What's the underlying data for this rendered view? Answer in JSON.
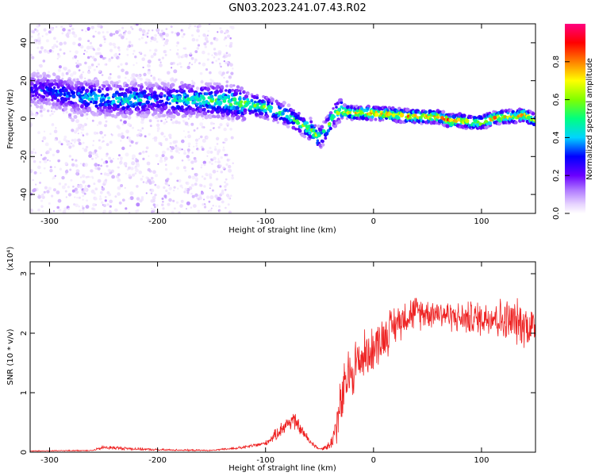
{
  "title": "GN03.2023.241.07.43.R02",
  "chart_data": [
    {
      "type": "heatmap",
      "xlabel": "Height of straight line (km)",
      "ylabel": "Frequency (Hz)",
      "xlim": [
        -318,
        150
      ],
      "ylim": [
        -50,
        50
      ],
      "xticks": [
        -300,
        -200,
        -100,
        0,
        100
      ],
      "yticks": [
        -40,
        -20,
        0,
        20,
        40
      ],
      "colorbar": {
        "label": "Normalized spectral amplitude",
        "range": [
          0,
          1
        ],
        "ticks": [
          0.0,
          0.2,
          0.4,
          0.6,
          0.8
        ],
        "colors": [
          "#ffffff",
          "#e6d2ff",
          "#b27dff",
          "#6a00ff",
          "#0000ff",
          "#00d4ff",
          "#00ff80",
          "#80ff00",
          "#ffff00",
          "#ff8000",
          "#ff0000",
          "#ff0080"
        ]
      },
      "ridge": {
        "x": [
          -318,
          -300,
          -280,
          -260,
          -240,
          -220,
          -200,
          -180,
          -160,
          -140,
          -120,
          -100,
          -90,
          -80,
          -70,
          -60,
          -55,
          -50,
          -45,
          -40,
          -35,
          -30,
          -20,
          -10,
          0,
          20,
          40,
          60,
          70,
          80,
          90,
          100,
          110,
          120,
          130,
          140,
          150
        ],
        "freq": [
          15,
          15,
          12,
          11,
          10,
          10,
          10,
          10,
          10,
          9,
          8,
          6,
          4,
          2,
          -2,
          -5,
          -8,
          -10,
          -7,
          -2,
          3,
          4,
          3,
          3,
          3,
          2,
          1,
          1,
          -1,
          -1,
          -2,
          -2,
          0,
          1,
          1,
          2,
          -1
        ],
        "amplitude": [
          0.4,
          0.45,
          0.5,
          0.55,
          0.55,
          0.6,
          0.45,
          0.6,
          0.6,
          0.65,
          0.7,
          0.7,
          0.65,
          0.6,
          0.65,
          0.7,
          0.75,
          0.7,
          0.6,
          0.7,
          0.75,
          0.85,
          0.9,
          0.9,
          0.95,
          0.95,
          0.95,
          0.9,
          0.95,
          0.95,
          0.85,
          0.85,
          0.9,
          0.9,
          0.85,
          0.9,
          0.8
        ]
      }
    },
    {
      "type": "line",
      "series_color": "#ee2222",
      "xlabel": "Height of straight line (km)",
      "ylabel": "SNR (10 * v/v)",
      "y_multiplier_label": "(x10⁴)",
      "xlim": [
        -318,
        150
      ],
      "ylim": [
        0,
        3.2
      ],
      "xticks": [
        -300,
        -200,
        -100,
        0,
        100
      ],
      "yticks": [
        0,
        1,
        2,
        3
      ],
      "envelope": {
        "x": [
          -318,
          -260,
          -250,
          -200,
          -150,
          -120,
          -100,
          -90,
          -85,
          -75,
          -70,
          -60,
          -50,
          -40,
          -35,
          -30,
          -25,
          -20,
          -10,
          0,
          10,
          20,
          30,
          40,
          50,
          60,
          70,
          80,
          90,
          100,
          110,
          120,
          130,
          140,
          150
        ],
        "y": [
          0.02,
          0.03,
          0.08,
          0.04,
          0.03,
          0.08,
          0.15,
          0.3,
          0.4,
          0.55,
          0.45,
          0.2,
          0.05,
          0.12,
          0.4,
          0.8,
          1.2,
          1.4,
          1.6,
          1.75,
          1.95,
          2.15,
          2.3,
          2.35,
          2.35,
          2.35,
          2.3,
          2.25,
          2.25,
          2.25,
          2.3,
          2.2,
          2.2,
          2.15,
          2.1
        ],
        "spread": [
          0.01,
          0.01,
          0.04,
          0.02,
          0.01,
          0.03,
          0.05,
          0.12,
          0.15,
          0.2,
          0.15,
          0.08,
          0.02,
          0.1,
          0.35,
          0.6,
          0.55,
          0.6,
          0.5,
          0.45,
          0.45,
          0.4,
          0.35,
          0.35,
          0.3,
          0.3,
          0.3,
          0.3,
          0.35,
          0.35,
          0.4,
          0.45,
          0.45,
          0.45,
          0.45
        ]
      }
    }
  ]
}
